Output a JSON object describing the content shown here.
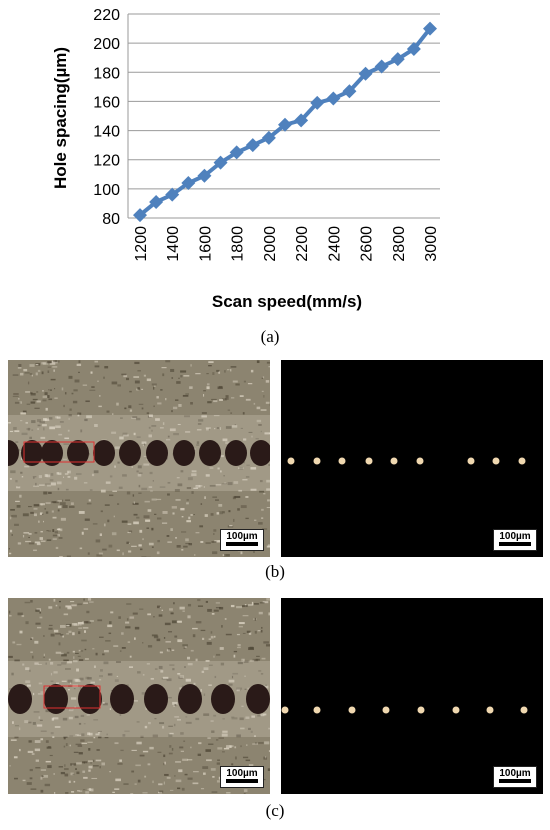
{
  "chart_data": {
    "type": "line",
    "x": [
      1200,
      1300,
      1400,
      1500,
      1600,
      1700,
      1800,
      1900,
      2000,
      2100,
      2200,
      2300,
      2400,
      2500,
      2600,
      2700,
      2800,
      2900,
      3000
    ],
    "series": [
      {
        "values": [
          82,
          91,
          96,
          104,
          109,
          118,
          125,
          130,
          135,
          144,
          147,
          159,
          162,
          167,
          179,
          184,
          189,
          196,
          210
        ]
      }
    ],
    "xlabel": "Scan speed(mm/s)",
    "ylabel": "Hole spacing(µm)",
    "xticks": [
      1200,
      1400,
      1600,
      1800,
      2000,
      2200,
      2400,
      2600,
      2800,
      3000
    ],
    "yticks": [
      80,
      100,
      120,
      140,
      160,
      180,
      200,
      220
    ],
    "ylim": [
      80,
      220
    ],
    "grid": true,
    "color": "#4f81bd"
  },
  "captions": {
    "a": "(a)",
    "b": "(b)",
    "c": "(c)"
  },
  "scale_label": "100µm",
  "colors": {
    "micrograph_bg": "#8c8470",
    "hole": "#2a1a18",
    "dark_bg": "#000000",
    "spot": "#f0d8b0",
    "marker": "#e03030"
  }
}
